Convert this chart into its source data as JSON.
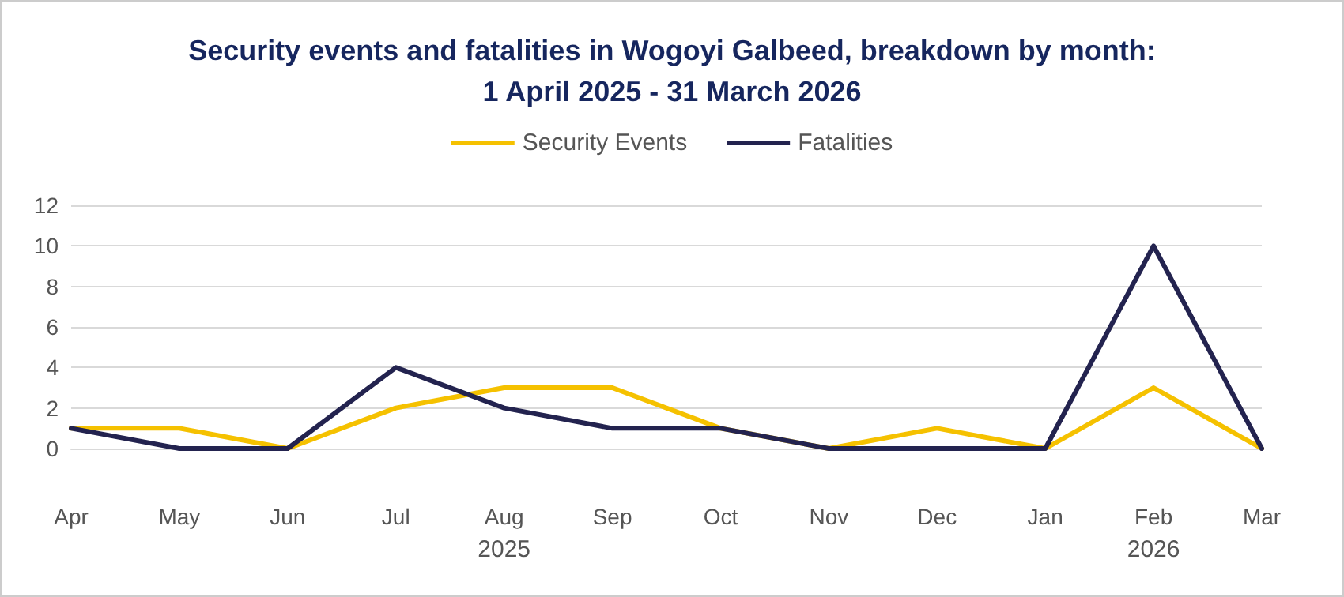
{
  "chart_data": {
    "type": "line",
    "title": "Security events and fatalities in Wogoyi Galbeed, breakdown by month:\n1 April 2025 - 31 March 2026",
    "categories": [
      "Apr",
      "May",
      "Jun",
      "Jul",
      "Aug",
      "Sep",
      "Oct",
      "Nov",
      "Dec",
      "Jan",
      "Feb",
      "Mar"
    ],
    "series": [
      {
        "name": "Security Events",
        "color": "#f5c100",
        "values": [
          1,
          1,
          0,
          2,
          3,
          3,
          1,
          0,
          1,
          0,
          3,
          0
        ]
      },
      {
        "name": "Fatalities",
        "color": "#23234f",
        "values": [
          1,
          0,
          0,
          4,
          2,
          1,
          1,
          0,
          0,
          0,
          10,
          0
        ]
      }
    ],
    "ylim": [
      0,
      12
    ],
    "yticks": [
      0,
      2,
      4,
      6,
      8,
      10,
      12
    ],
    "grid": "y",
    "legend": "top",
    "marker": "none",
    "line_style": "solid",
    "annotations": [
      "2025",
      "2026"
    ]
  }
}
